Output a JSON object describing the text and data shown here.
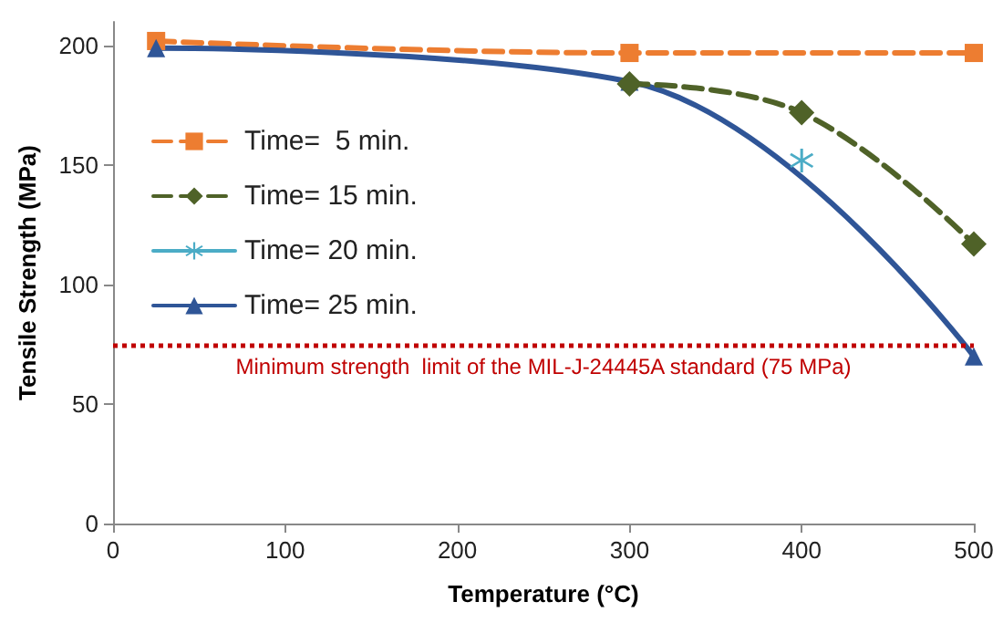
{
  "chart_data": {
    "type": "line",
    "xlabel": "Temperature (°C)",
    "ylabel": "Tensile Strength (MPa)",
    "xlim": [
      0,
      500
    ],
    "xticks": [
      0,
      100,
      200,
      300,
      400,
      500
    ],
    "ylim": [
      0,
      210
    ],
    "yticks": [
      0,
      50,
      100,
      150,
      200
    ],
    "grid": false,
    "legend": "top left",
    "series": [
      {
        "name": "Time=  5 min.",
        "color": "#ed7d31",
        "x": [
          25,
          300,
          500
        ],
        "values": [
          202,
          197,
          197
        ],
        "marker": "square",
        "line_style": "dashed"
      },
      {
        "name": "Time= 15 min.",
        "color": "#4f6228",
        "x": [
          300,
          400,
          500
        ],
        "values": [
          184,
          172,
          117
        ],
        "marker": "diamond",
        "line_style": "dashed"
      },
      {
        "name": "Time= 20 min.",
        "color": "#4bacc6",
        "x": [
          400
        ],
        "values": [
          152
        ],
        "marker": "cross",
        "line_style": "solid"
      },
      {
        "name": "Time= 25 min.",
        "color": "#2f5597",
        "x": [
          25,
          300,
          500
        ],
        "values": [
          199,
          185,
          70
        ],
        "marker": "triangle",
        "line_style": "solid"
      }
    ],
    "ref_lines": [
      {
        "axis": "y",
        "value": 75,
        "label": "Minimum strength  limit of the MIL-J-24445A standard (75 MPa)",
        "color": "#c00000",
        "line_style": "dotted"
      }
    ]
  }
}
